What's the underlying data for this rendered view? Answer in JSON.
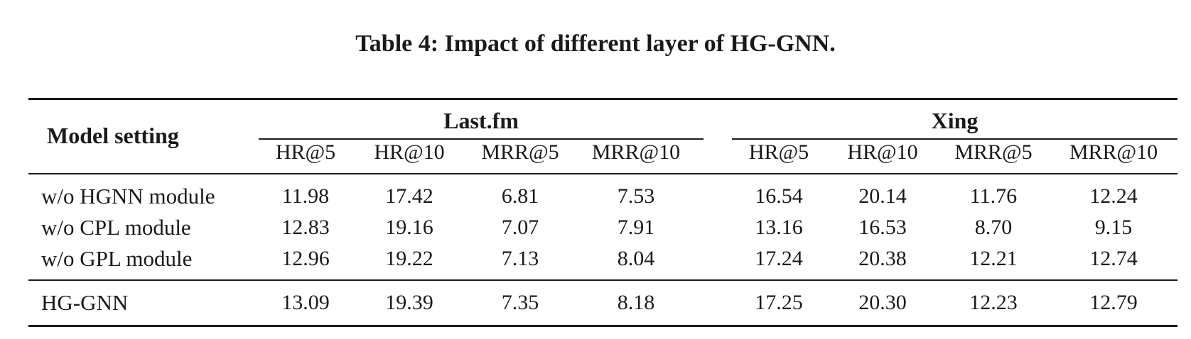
{
  "caption": "Table 4: Impact of different layer of HG-GNN.",
  "table": {
    "row_header": "Model setting",
    "groups": [
      "Last.fm",
      "Xing"
    ],
    "metrics": [
      "HR@5",
      "HR@10",
      "MRR@5",
      "MRR@10",
      "HR@5",
      "HR@10",
      "MRR@5",
      "MRR@10"
    ],
    "rows": [
      {
        "label": "w/o HGNN module",
        "values": [
          "11.98",
          "17.42",
          "6.81",
          "7.53",
          "16.54",
          "20.14",
          "11.76",
          "12.24"
        ]
      },
      {
        "label": "w/o CPL module",
        "values": [
          "12.83",
          "19.16",
          "7.07",
          "7.91",
          "13.16",
          "16.53",
          "8.70",
          "9.15"
        ]
      },
      {
        "label": "w/o GPL module",
        "values": [
          "12.96",
          "19.22",
          "7.13",
          "8.04",
          "17.24",
          "20.38",
          "12.21",
          "12.74"
        ]
      },
      {
        "label": "HG-GNN",
        "values": [
          "13.09",
          "19.39",
          "7.35",
          "8.18",
          "17.25",
          "20.30",
          "12.23",
          "12.79"
        ]
      }
    ]
  }
}
